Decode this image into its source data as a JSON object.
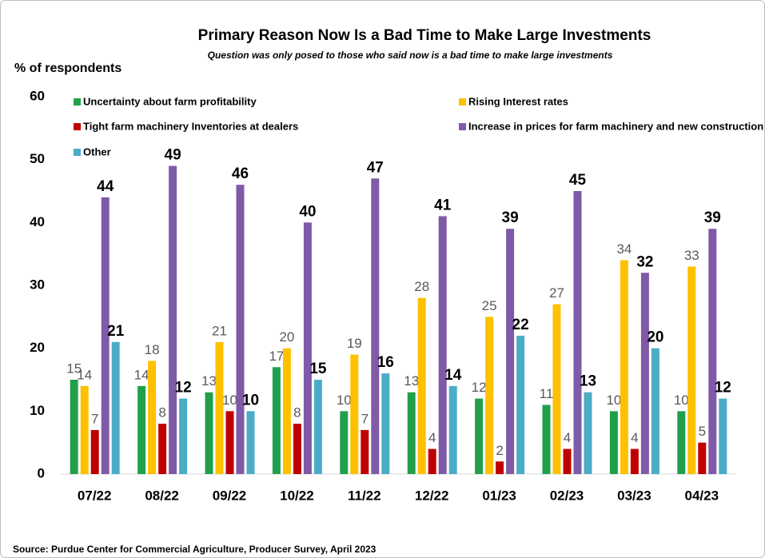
{
  "chart_data": {
    "type": "bar",
    "title": "Primary Reason Now Is a Bad Time to Make Large Investments",
    "subtitle": "Question was only posed to those who said now is a bad time to make large investments",
    "y_label": "% of respondents",
    "source": "Source: Purdue Center for Commercial Agriculture, Producer Survey, April 2023",
    "categories": [
      "07/22",
      "08/22",
      "09/22",
      "10/22",
      "11/22",
      "12/22",
      "01/23",
      "02/23",
      "03/23",
      "04/23"
    ],
    "series": [
      {
        "name": "Uncertainty about farm profitability",
        "color": "#21a04b",
        "values": [
          15,
          14,
          13,
          17,
          10,
          13,
          12,
          11,
          10,
          10
        ]
      },
      {
        "name": "Rising Interest rates",
        "color": "#ffc000",
        "values": [
          14,
          18,
          21,
          20,
          19,
          28,
          25,
          27,
          34,
          33
        ]
      },
      {
        "name": "Tight farm machinery Inventories at dealers",
        "color": "#c00000",
        "values": [
          7,
          8,
          10,
          8,
          7,
          4,
          2,
          4,
          4,
          5
        ]
      },
      {
        "name": "Increase in prices for farm machinery and new construction",
        "color": "#7f5aa8",
        "values": [
          44,
          49,
          46,
          40,
          47,
          41,
          39,
          45,
          32,
          39
        ]
      },
      {
        "name": "Other",
        "color": "#4bacc6",
        "values": [
          21,
          12,
          10,
          15,
          16,
          14,
          22,
          13,
          20,
          12
        ]
      }
    ],
    "ylim": [
      0,
      60
    ],
    "yticks": [
      0,
      10,
      20,
      30,
      40,
      50,
      60
    ],
    "grid": false
  }
}
